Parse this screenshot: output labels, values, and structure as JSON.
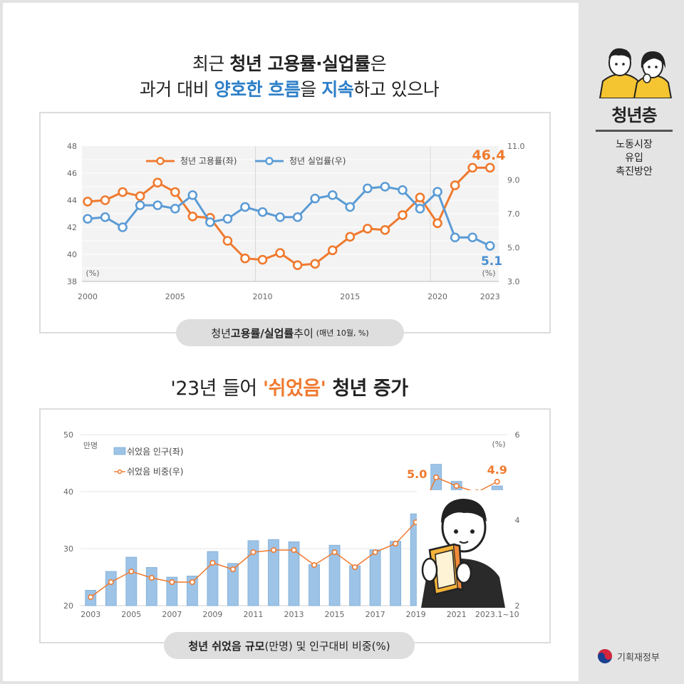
{
  "headline1": {
    "line1_a": "최근 ",
    "line1_b": "청년 고용률·실업률",
    "line1_c": "은",
    "line2_a": "과거 대비 ",
    "line2_b": "양호한 흐름",
    "line2_c": "을 ",
    "line2_d": "지속",
    "line2_e": "하고 있으나"
  },
  "caption1": {
    "a": "청년 ",
    "b": "고용률/실업률",
    "c": " 추이",
    "d": "(매년 10월, %)"
  },
  "headline2": {
    "a": "'23년 들어 ",
    "b": "'쉬었음'",
    "c": " 청년 증가"
  },
  "caption2": {
    "a": "청년 쉬었음 규모",
    "b": "(만명) 및 인구대비 비중(%)"
  },
  "side": {
    "title": "청년층",
    "sub1": "노동시장",
    "sub2": "유입",
    "sub3": "촉진방안"
  },
  "gov": {
    "name": "기획재정부"
  },
  "colors": {
    "orange": "#ef7a2f",
    "blue": "#5b9bd5",
    "bar": "#9dc3e6"
  },
  "chart_data": [
    {
      "type": "line",
      "x": [
        2000,
        2001,
        2002,
        2003,
        2004,
        2005,
        2006,
        2007,
        2008,
        2009,
        2010,
        2011,
        2012,
        2013,
        2014,
        2015,
        2016,
        2017,
        2018,
        2019,
        2020,
        2021,
        2022,
        2023
      ],
      "x_tick_labels": [
        "2000",
        "2005",
        "2010",
        "2015",
        "2020",
        "2023"
      ],
      "x_ticks": [
        2000,
        2005,
        2010,
        2015,
        2020,
        2023
      ],
      "series": [
        {
          "name": "청년 고용률(좌)",
          "axis": "left",
          "color": "#ef7a2f",
          "values": [
            43.9,
            44.0,
            44.6,
            44.3,
            45.3,
            44.6,
            42.8,
            42.7,
            41.0,
            39.7,
            39.6,
            40.1,
            39.2,
            39.3,
            40.3,
            41.3,
            41.9,
            41.8,
            42.9,
            44.2,
            42.3,
            45.1,
            46.4,
            46.4
          ]
        },
        {
          "name": "청년 실업률(우)",
          "axis": "right",
          "color": "#5b9bd5",
          "values": [
            6.7,
            6.8,
            6.2,
            7.5,
            7.5,
            7.3,
            8.1,
            6.5,
            6.7,
            7.4,
            7.1,
            6.8,
            6.8,
            7.9,
            8.1,
            7.4,
            8.5,
            8.6,
            8.4,
            7.3,
            8.3,
            5.6,
            5.6,
            5.1
          ]
        }
      ],
      "left_axis": {
        "ticks": [
          "48",
          "46",
          "44",
          "42",
          "40",
          "38"
        ],
        "range": [
          38,
          48
        ],
        "unit": "(%)"
      },
      "right_axis": {
        "ticks": [
          "11.0",
          "9.0",
          "7.0",
          "5.0",
          "3.0"
        ],
        "range": [
          3,
          11
        ],
        "unit": "(%)"
      },
      "annotations": {
        "employment_last": "46.4",
        "unemployment_last": "5.1"
      },
      "grid": true,
      "legend": "top-left"
    },
    {
      "type": "bar",
      "categories": [
        "2003",
        "2004",
        "2005",
        "2006",
        "2007",
        "2008",
        "2009",
        "2010",
        "2011",
        "2012",
        "2013",
        "2014",
        "2015",
        "2016",
        "2017",
        "2018",
        "2019",
        "2020",
        "2021",
        "2022",
        "2023.1~10"
      ],
      "x_tick_labels": [
        "2003",
        "2005",
        "2007",
        "2009",
        "2011",
        "2013",
        "2015",
        "2017",
        "2019",
        "2021",
        "2023.1~10"
      ],
      "series": [
        {
          "name": "쉬었음 인구(좌)",
          "axis": "left",
          "type": "bar",
          "color": "#9dc3e6",
          "values": [
            22.7,
            26.0,
            28.5,
            26.7,
            25.0,
            25.2,
            29.5,
            27.4,
            31.4,
            31.6,
            31.2,
            27.2,
            30.6,
            27.0,
            29.8,
            31.3,
            36.1,
            44.8,
            41.8,
            39.0,
            41.0
          ]
        },
        {
          "name": "쉬었음 비중(우)",
          "axis": "right",
          "type": "line",
          "color": "#ef7a2f",
          "values": [
            2.2,
            2.55,
            2.8,
            2.65,
            2.55,
            2.55,
            3.0,
            2.85,
            3.25,
            3.3,
            3.3,
            2.95,
            3.25,
            2.9,
            3.25,
            3.45,
            3.95,
            5.0,
            4.8,
            4.65,
            4.9
          ]
        }
      ],
      "left_axis": {
        "ticks": [
          "50",
          "40",
          "30",
          "20"
        ],
        "range": [
          20,
          50
        ],
        "unit": "만명"
      },
      "right_axis": {
        "ticks": [
          "6",
          "4",
          "2"
        ],
        "range": [
          2,
          6
        ],
        "unit": "(%)"
      },
      "annotations": {
        "peak": "5.0",
        "last": "4.9"
      },
      "grid": true,
      "legend": "top-left"
    }
  ]
}
